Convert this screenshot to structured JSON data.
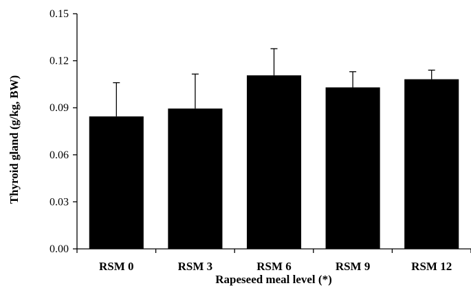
{
  "chart_data": {
    "type": "bar",
    "title": "",
    "xlabel": "Rapeseed meal level (*)",
    "ylabel": "Thyroid gland (g/kg, BW)",
    "categories": [
      "RSM 0",
      "RSM 3",
      "RSM 6",
      "RSM 9",
      "RSM 12"
    ],
    "values": [
      0.0845,
      0.0895,
      0.1107,
      0.103,
      0.1082
    ],
    "error_bars": [
      0.0215,
      0.022,
      0.017,
      0.01,
      0.0058
    ],
    "ylim": [
      0,
      0.15
    ],
    "yticks": [
      0.0,
      0.03,
      0.06,
      0.09,
      0.12,
      0.15
    ],
    "ytick_labels": [
      "0.00",
      "0.03",
      "0.06",
      "0.09",
      "0.12",
      "0.15"
    ],
    "grid": false,
    "legend": "none",
    "bar_color": "#000000"
  }
}
